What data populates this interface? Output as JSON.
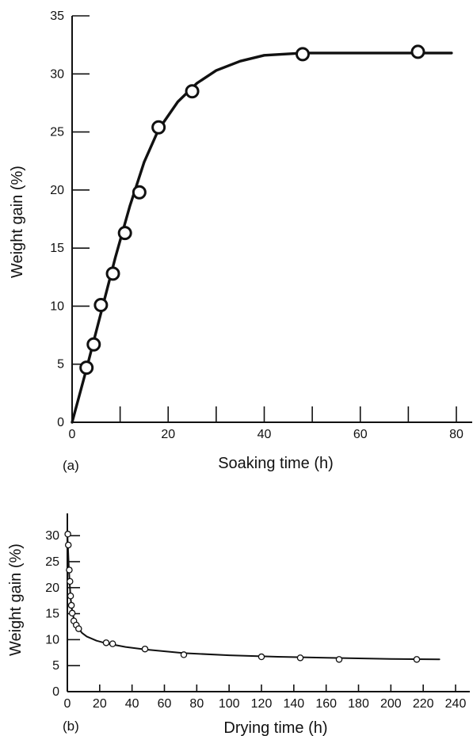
{
  "chart_data": [
    {
      "type": "line",
      "panel_label": "(a)",
      "xlabel": "Soaking time (h)",
      "ylabel": "Weight gain (%)",
      "xlim": [
        0,
        80
      ],
      "ylim": [
        0,
        35
      ],
      "x_ticks": [
        0,
        20,
        40,
        60,
        80
      ],
      "x_minor_ticks": [
        10,
        30,
        50,
        70
      ],
      "y_ticks": [
        0,
        5,
        10,
        15,
        20,
        25,
        30,
        35
      ],
      "grid": false,
      "series": [
        {
          "points": [
            {
              "x": 3,
              "y": 4.7
            },
            {
              "x": 4.5,
              "y": 6.7
            },
            {
              "x": 6,
              "y": 10.1
            },
            {
              "x": 8.5,
              "y": 12.8
            },
            {
              "x": 11,
              "y": 16.3
            },
            {
              "x": 14,
              "y": 19.8
            },
            {
              "x": 18,
              "y": 25.4
            },
            {
              "x": 25,
              "y": 28.5
            },
            {
              "x": 48,
              "y": 31.7
            },
            {
              "x": 72,
              "y": 31.9
            }
          ],
          "curve": [
            {
              "x": 0,
              "y": 0
            },
            {
              "x": 3,
              "y": 4.6
            },
            {
              "x": 6,
              "y": 9.4
            },
            {
              "x": 9,
              "y": 14.2
            },
            {
              "x": 12,
              "y": 18.6
            },
            {
              "x": 15,
              "y": 22.4
            },
            {
              "x": 18,
              "y": 25.2
            },
            {
              "x": 22,
              "y": 27.6
            },
            {
              "x": 26,
              "y": 29.2
            },
            {
              "x": 30,
              "y": 30.3
            },
            {
              "x": 35,
              "y": 31.1
            },
            {
              "x": 40,
              "y": 31.6
            },
            {
              "x": 48,
              "y": 31.8
            },
            {
              "x": 60,
              "y": 31.8
            },
            {
              "x": 72,
              "y": 31.8
            },
            {
              "x": 79,
              "y": 31.8
            }
          ],
          "color": "#111111"
        }
      ]
    },
    {
      "type": "line",
      "panel_label": "(b)",
      "xlabel": "Drying time (h)",
      "ylabel": "Weight gain (%)",
      "xlim": [
        0,
        240
      ],
      "ylim": [
        0,
        32
      ],
      "x_ticks": [
        0,
        20,
        40,
        60,
        80,
        100,
        120,
        140,
        160,
        180,
        200,
        220,
        240
      ],
      "y_ticks": [
        0,
        5,
        10,
        15,
        20,
        25,
        30
      ],
      "grid": false,
      "series": [
        {
          "points": [
            {
              "x": 0.3,
              "y": 30.3
            },
            {
              "x": 0.6,
              "y": 28.2
            },
            {
              "x": 1.2,
              "y": 23.4
            },
            {
              "x": 1.6,
              "y": 21.2
            },
            {
              "x": 2,
              "y": 18.4
            },
            {
              "x": 2.5,
              "y": 16.6
            },
            {
              "x": 3,
              "y": 15.1
            },
            {
              "x": 4,
              "y": 13.6
            },
            {
              "x": 5.5,
              "y": 12.8
            },
            {
              "x": 7,
              "y": 12.1
            },
            {
              "x": 24,
              "y": 9.4
            },
            {
              "x": 28,
              "y": 9.2
            },
            {
              "x": 48,
              "y": 8.2
            },
            {
              "x": 72,
              "y": 7.1
            },
            {
              "x": 120,
              "y": 6.7
            },
            {
              "x": 144,
              "y": 6.5
            },
            {
              "x": 168,
              "y": 6.2
            },
            {
              "x": 216,
              "y": 6.2
            }
          ],
          "curve": [
            {
              "x": 0,
              "y": 30.5
            },
            {
              "x": 0.5,
              "y": 27
            },
            {
              "x": 1,
              "y": 23.5
            },
            {
              "x": 1.5,
              "y": 20.5
            },
            {
              "x": 2,
              "y": 18
            },
            {
              "x": 3,
              "y": 15.5
            },
            {
              "x": 4,
              "y": 14
            },
            {
              "x": 6,
              "y": 12.5
            },
            {
              "x": 9,
              "y": 11.3
            },
            {
              "x": 12,
              "y": 10.6
            },
            {
              "x": 18,
              "y": 9.8
            },
            {
              "x": 24,
              "y": 9.3
            },
            {
              "x": 36,
              "y": 8.6
            },
            {
              "x": 48,
              "y": 8.1
            },
            {
              "x": 72,
              "y": 7.4
            },
            {
              "x": 100,
              "y": 7
            },
            {
              "x": 130,
              "y": 6.7
            },
            {
              "x": 160,
              "y": 6.5
            },
            {
              "x": 200,
              "y": 6.3
            },
            {
              "x": 230,
              "y": 6.2
            }
          ],
          "color": "#111111"
        }
      ]
    }
  ]
}
